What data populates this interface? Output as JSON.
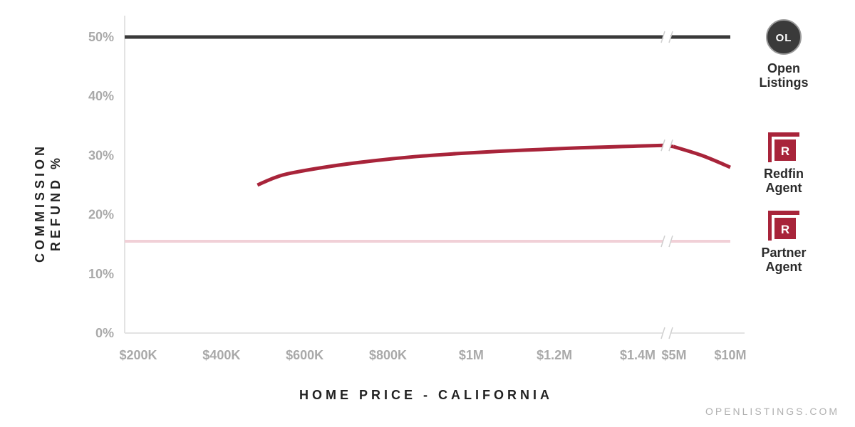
{
  "chart_data": {
    "type": "line",
    "xlabel": "HOME PRICE - CALIFORNIA",
    "ylabel_lines": [
      "COMMISSION",
      "REFUND %"
    ],
    "ylim": [
      0,
      50
    ],
    "y_ticks": [
      {
        "value": 0,
        "label": "0%"
      },
      {
        "value": 10,
        "label": "10%"
      },
      {
        "value": 20,
        "label": "20%"
      },
      {
        "value": 30,
        "label": "30%"
      },
      {
        "value": 40,
        "label": "40%"
      },
      {
        "value": 50,
        "label": "50%"
      }
    ],
    "x_ticks": [
      {
        "value": 200000,
        "label": "$200K"
      },
      {
        "value": 400000,
        "label": "$400K"
      },
      {
        "value": 600000,
        "label": "$600K"
      },
      {
        "value": 800000,
        "label": "$800K"
      },
      {
        "value": 1000000,
        "label": "$1M"
      },
      {
        "value": 1200000,
        "label": "$1.2M"
      },
      {
        "value": 1400000,
        "label": "$1.4M"
      },
      {
        "value": 5000000,
        "label": "$5M"
      },
      {
        "value": 10000000,
        "label": "$10M"
      }
    ],
    "axis_break_between": [
      1400000,
      5000000
    ],
    "grid": false,
    "series": [
      {
        "name": "Open Listings",
        "label_lines": [
          "Open",
          "Listings"
        ],
        "badge": "OL",
        "color": "#3a3a3a",
        "points": [
          [
            200000,
            50
          ],
          [
            1500000,
            50
          ],
          [
            5000000,
            50
          ],
          [
            10000000,
            50
          ]
        ]
      },
      {
        "name": "Redfin Agent",
        "label_lines": [
          "Redfin",
          "Agent"
        ],
        "badge": "R",
        "color": "#a8243a",
        "points": [
          [
            520000,
            25.0
          ],
          [
            560000,
            26.2
          ],
          [
            600000,
            27.0
          ],
          [
            700000,
            28.2
          ],
          [
            800000,
            29.1
          ],
          [
            900000,
            29.8
          ],
          [
            1000000,
            30.3
          ],
          [
            1100000,
            30.7
          ],
          [
            1200000,
            31.0
          ],
          [
            1300000,
            31.3
          ],
          [
            1400000,
            31.5
          ],
          [
            1500000,
            31.7
          ],
          [
            5000000,
            31.5
          ],
          [
            7500000,
            30.0
          ],
          [
            10000000,
            28.0
          ]
        ]
      },
      {
        "name": "Partner Agent",
        "label_lines": [
          "Partner",
          "Agent"
        ],
        "badge": "R",
        "color": "#f1d0d7",
        "points": [
          [
            200000,
            15.5
          ],
          [
            1500000,
            15.5
          ],
          [
            5000000,
            15.5
          ],
          [
            10000000,
            15.5
          ]
        ]
      }
    ]
  },
  "colors": {
    "axis": "#e3e3e3",
    "redfin_red": "#a8243a",
    "ol_badge": "#3a3a3a"
  },
  "watermark": "OPENLISTINGS.COM"
}
